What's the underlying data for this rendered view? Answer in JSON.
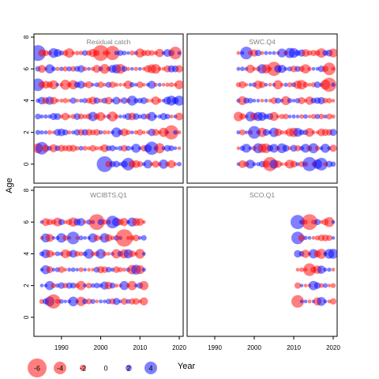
{
  "figure": {
    "ylabel": "Age",
    "xlabel": "Year",
    "colors": {
      "positive": "#0000ff",
      "negative": "#ff0000",
      "frame": "#000000",
      "title": "#808080"
    }
  },
  "chart_data": {
    "type": "scatter",
    "subtype": "bubble",
    "xlim": [
      1983,
      2021
    ],
    "ylim": [
      -1.2,
      8.2
    ],
    "x_ticks": [
      1990,
      2000,
      2010,
      2020
    ],
    "y_ticks": [
      0,
      2,
      4,
      6,
      8
    ],
    "legend": {
      "values": [
        -6,
        -4,
        -2,
        0,
        2,
        4
      ],
      "labels": [
        "-6",
        "-4",
        "-2",
        "0",
        "2",
        "4"
      ],
      "placement": "bottom"
    },
    "panels": [
      {
        "title": "Residual catch",
        "years": [
          1984,
          2020
        ],
        "ages": [
          0,
          1,
          2,
          3,
          4,
          5,
          6,
          7
        ],
        "age_years": {
          "0": [
            2001,
            2020
          ]
        },
        "highlights": [
          {
            "year": 1984,
            "age": 7,
            "value": 4.0
          },
          {
            "year": 2001,
            "age": 0,
            "value": 4.0
          },
          {
            "year": 2007,
            "age": 0,
            "value": 3.0
          },
          {
            "year": 2000,
            "age": 7,
            "value": -4.0
          },
          {
            "year": 2003,
            "age": 7,
            "value": -3.5
          },
          {
            "year": 2018,
            "age": 2,
            "value": -3.5
          },
          {
            "year": 2019,
            "age": 7,
            "value": -3.0
          },
          {
            "year": 2013,
            "age": 1,
            "value": 3.2
          },
          {
            "year": 1985,
            "age": 1,
            "value": 3.0
          },
          {
            "year": 1984,
            "age": 5,
            "value": 3.0
          }
        ]
      },
      {
        "title": "SWC.Q4",
        "years": [
          1996,
          2020
        ],
        "ages": [
          0,
          1,
          2,
          3,
          4,
          5,
          6,
          7
        ],
        "highlights": [
          {
            "year": 2005,
            "age": 6,
            "value": -3.5
          },
          {
            "year": 2019,
            "age": 5,
            "value": -3.5
          },
          {
            "year": 2019,
            "age": 6,
            "value": -3.0
          },
          {
            "year": 2004,
            "age": 0,
            "value": -3.5
          },
          {
            "year": 2014,
            "age": 0,
            "value": 3.5
          },
          {
            "year": 2017,
            "age": 0,
            "value": 3.0
          },
          {
            "year": 1998,
            "age": 7,
            "value": 3.0
          },
          {
            "year": 2000,
            "age": 2,
            "value": 3.0
          }
        ]
      },
      {
        "title": "WCIBTS.Q1",
        "years": [
          1985,
          2011
        ],
        "ages": [
          1,
          2,
          3,
          4,
          5,
          6
        ],
        "highlights": [
          {
            "year": 1999,
            "age": 6,
            "value": -4.0
          },
          {
            "year": 2006,
            "age": 5,
            "value": -4.5
          },
          {
            "year": 1988,
            "age": 1,
            "value": -3.5
          },
          {
            "year": 2003,
            "age": 6,
            "value": 3.0
          },
          {
            "year": 1993,
            "age": 5,
            "value": 3.0
          }
        ]
      },
      {
        "title": "SCO.Q1",
        "years": [
          2011,
          2020
        ],
        "ages": [
          1,
          2,
          3,
          4,
          5,
          6
        ],
        "highlights": [
          {
            "year": 2014,
            "age": 6,
            "value": -4.0
          },
          {
            "year": 2011,
            "age": 6,
            "value": 3.5
          },
          {
            "year": 2011,
            "age": 5,
            "value": 3.0
          },
          {
            "year": 2014,
            "age": 3,
            "value": -3.0
          },
          {
            "year": 2011,
            "age": 1,
            "value": -3.0
          }
        ]
      }
    ]
  }
}
